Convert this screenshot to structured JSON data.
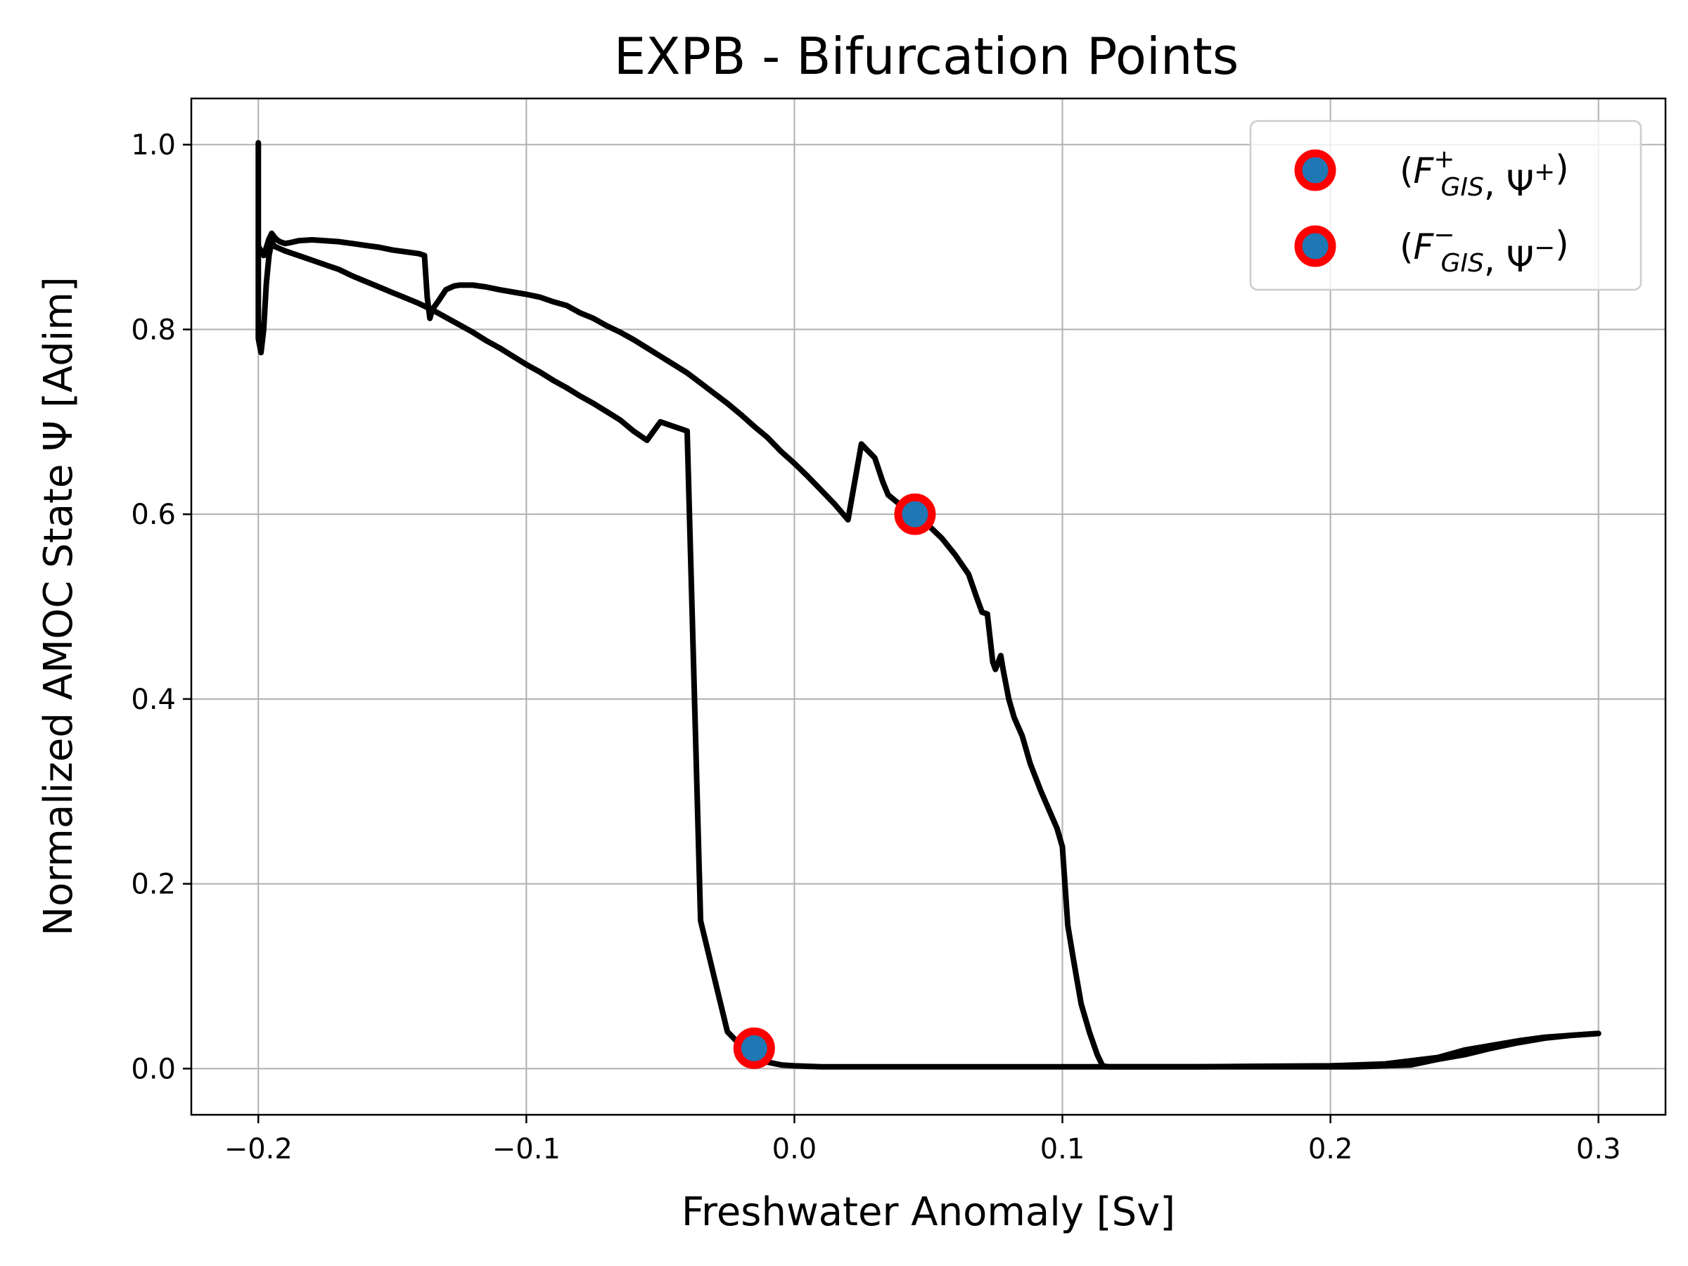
{
  "chart_data": {
    "type": "line",
    "title": "EXPB - Bifurcation Points",
    "xlabel": "Freshwater Anomaly [Sv]",
    "ylabel": "Normalized AMOC State Ψ [Adim]",
    "xlim": [
      -0.225,
      0.325
    ],
    "ylim": [
      -0.05,
      1.05
    ],
    "x_ticks": [
      -0.2,
      -0.1,
      0.0,
      0.1,
      0.2,
      0.3
    ],
    "x_tick_labels": [
      "−0.2",
      "−0.1",
      "0.0",
      "0.1",
      "0.2",
      "0.3"
    ],
    "y_ticks": [
      0.0,
      0.2,
      0.4,
      0.6,
      0.8,
      1.0
    ],
    "y_tick_labels": [
      "0.0",
      "0.2",
      "0.4",
      "0.6",
      "0.8",
      "1.0"
    ],
    "grid": true,
    "legend_position": "top-right",
    "line_color": "#000000",
    "marker_fill": "#1f77b4",
    "marker_edge": "#ff0000",
    "series": [
      {
        "x": [
          -0.2,
          -0.2,
          -0.199,
          -0.198,
          -0.196,
          -0.195,
          -0.194,
          -0.193,
          -0.192,
          -0.19,
          -0.188,
          -0.185,
          -0.18,
          -0.175,
          -0.17,
          -0.165,
          -0.16,
          -0.155,
          -0.15,
          -0.145,
          -0.14,
          -0.138,
          -0.137,
          -0.136,
          -0.135,
          -0.133,
          -0.13,
          -0.127,
          -0.125,
          -0.12,
          -0.115,
          -0.11,
          -0.1,
          -0.095,
          -0.09,
          -0.085,
          -0.08,
          -0.075,
          -0.07,
          -0.065,
          -0.06,
          -0.055,
          -0.05,
          -0.045,
          -0.04,
          -0.035,
          -0.03,
          -0.025,
          -0.02,
          -0.015,
          -0.01,
          -0.005,
          0.0,
          0.005,
          0.01,
          0.015,
          0.02,
          0.025,
          0.027,
          0.03,
          0.033,
          0.035,
          0.04,
          0.045,
          0.05,
          0.055,
          0.06,
          0.065,
          0.068,
          0.07,
          0.072,
          0.074,
          0.075,
          0.077,
          0.078,
          0.08,
          0.082,
          0.085,
          0.088,
          0.092,
          0.095,
          0.098,
          0.1,
          0.102,
          0.104,
          0.107,
          0.11,
          0.113,
          0.115,
          0.117,
          0.12,
          0.15,
          0.18,
          0.2,
          0.21,
          0.22,
          0.23,
          0.24,
          0.25,
          0.26,
          0.27,
          0.28,
          0.29,
          0.3
        ],
        "y": [
          0.89,
          0.89,
          0.885,
          0.88,
          0.898,
          0.904,
          0.9,
          0.897,
          0.895,
          0.893,
          0.894,
          0.896,
          0.897,
          0.896,
          0.895,
          0.893,
          0.891,
          0.889,
          0.886,
          0.884,
          0.882,
          0.88,
          0.835,
          0.812,
          0.822,
          0.83,
          0.843,
          0.847,
          0.848,
          0.848,
          0.846,
          0.843,
          0.838,
          0.835,
          0.83,
          0.826,
          0.818,
          0.812,
          0.804,
          0.797,
          0.789,
          0.78,
          0.771,
          0.762,
          0.753,
          0.742,
          0.731,
          0.72,
          0.708,
          0.695,
          0.683,
          0.668,
          0.655,
          0.641,
          0.626,
          0.611,
          0.594,
          0.676,
          0.67,
          0.661,
          0.635,
          0.621,
          0.609,
          0.6,
          0.588,
          0.574,
          0.556,
          0.535,
          0.51,
          0.494,
          0.492,
          0.44,
          0.432,
          0.447,
          0.43,
          0.4,
          0.38,
          0.36,
          0.33,
          0.3,
          0.28,
          0.26,
          0.24,
          0.155,
          0.12,
          0.07,
          0.04,
          0.015,
          0.003,
          0.002,
          0.002,
          0.002,
          0.002,
          0.002,
          0.002,
          0.003,
          0.004,
          0.01,
          0.015,
          0.022,
          0.028,
          0.033,
          0.036,
          0.038
        ]
      },
      {
        "x": [
          -0.2,
          -0.2,
          -0.2,
          -0.199,
          -0.198,
          -0.197,
          -0.196,
          -0.195,
          -0.194,
          -0.19,
          -0.185,
          -0.18,
          -0.175,
          -0.17,
          -0.165,
          -0.16,
          -0.155,
          -0.15,
          -0.145,
          -0.14,
          -0.135,
          -0.13,
          -0.125,
          -0.12,
          -0.115,
          -0.11,
          -0.105,
          -0.1,
          -0.095,
          -0.09,
          -0.085,
          -0.08,
          -0.075,
          -0.07,
          -0.065,
          -0.06,
          -0.055,
          -0.05,
          -0.04,
          -0.035,
          -0.03,
          -0.025,
          -0.02,
          -0.018,
          -0.016,
          -0.014,
          -0.012,
          -0.01,
          -0.005,
          0.0,
          0.01,
          0.02,
          0.05,
          0.1,
          0.15,
          0.2,
          0.22,
          0.24,
          0.25,
          0.26,
          0.27,
          0.28,
          0.29,
          0.3
        ],
        "y": [
          1.002,
          0.8,
          0.79,
          0.775,
          0.8,
          0.85,
          0.88,
          0.895,
          0.89,
          0.885,
          0.88,
          0.875,
          0.87,
          0.865,
          0.858,
          0.852,
          0.846,
          0.84,
          0.834,
          0.828,
          0.821,
          0.813,
          0.805,
          0.797,
          0.788,
          0.78,
          0.771,
          0.762,
          0.754,
          0.745,
          0.737,
          0.728,
          0.72,
          0.711,
          0.702,
          0.69,
          0.68,
          0.7,
          0.69,
          0.16,
          0.1,
          0.04,
          0.025,
          0.02,
          0.015,
          0.012,
          0.01,
          0.007,
          0.004,
          0.003,
          0.002,
          0.002,
          0.002,
          0.002,
          0.002,
          0.003,
          0.005,
          0.012,
          0.02,
          0.025,
          0.03,
          0.034,
          0.036,
          0.038
        ]
      }
    ],
    "points": [
      {
        "x": 0.045,
        "y": 0.6
      },
      {
        "x": -0.015,
        "y": 0.022
      }
    ],
    "legend": [
      {
        "sup": "+"
      },
      {
        "sup": "−"
      }
    ]
  }
}
